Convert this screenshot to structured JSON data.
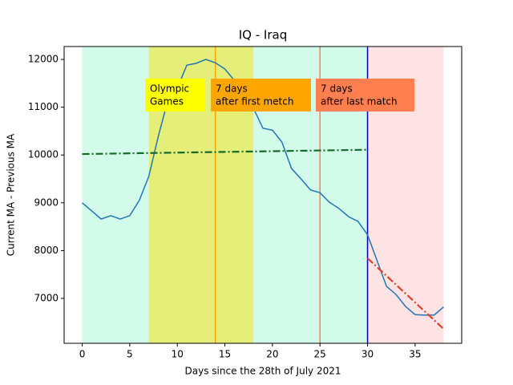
{
  "chart_data": {
    "type": "line",
    "title": "IQ - Iraq",
    "xlabel": "Days since the 28th of July 2021",
    "ylabel": "Current MA - Previous MA",
    "x": [
      0,
      1,
      2,
      3,
      4,
      5,
      6,
      7,
      8,
      9,
      10,
      11,
      12,
      13,
      14,
      15,
      16,
      17,
      18,
      19,
      20,
      21,
      22,
      23,
      24,
      25,
      26,
      27,
      28,
      29,
      30,
      31,
      32,
      33,
      34,
      35,
      36,
      37,
      38
    ],
    "series": [
      {
        "color": "#1f77b4",
        "style": "solid",
        "values": [
          9000,
          8830,
          8660,
          8730,
          8660,
          8730,
          9050,
          9550,
          10390,
          11140,
          11400,
          11880,
          11920,
          12000,
          11930,
          11800,
          11560,
          11230,
          10980,
          10560,
          10520,
          10270,
          9720,
          9500,
          9270,
          9210,
          9010,
          8880,
          8710,
          8610,
          8330,
          7790,
          7250,
          7080,
          6830,
          6660,
          6650,
          6650,
          6820
        ]
      },
      {
        "color": "#146b27",
        "style": "dashdot",
        "x": [
          0,
          30
        ],
        "values": [
          10020,
          10110
        ]
      },
      {
        "color": "#e0402a",
        "style": "dashdot",
        "x": [
          30,
          38
        ],
        "values": [
          7840,
          6360
        ]
      }
    ],
    "spans": [
      {
        "from": 0,
        "to": 7,
        "color": "#d2fbe9"
      },
      {
        "from": 7,
        "to": 18,
        "color": "#e6ee7a"
      },
      {
        "from": 18,
        "to": 30,
        "color": "#d2fbe9"
      },
      {
        "from": 30,
        "to": 38,
        "color": "#fde3e3"
      }
    ],
    "vlines": [
      {
        "x": 14,
        "color": "#ffa500"
      },
      {
        "x": 25,
        "color": "#ff7f50"
      },
      {
        "x": 30,
        "color": "#0000cd"
      }
    ],
    "annotations": [
      {
        "lines": [
          "Olympic",
          "Games"
        ],
        "color": "#ffff00"
      },
      {
        "lines": [
          "7 days",
          "after first metch"
        ],
        "color": "#ffa500"
      },
      {
        "lines": [
          "7 days",
          "after last match"
        ],
        "color": "#ff7f50"
      }
    ],
    "xlim": [
      -1.9,
      39.9
    ],
    "ylim": [
      6060,
      12270
    ],
    "xticks": [
      0,
      5,
      10,
      15,
      20,
      25,
      30,
      35
    ],
    "yticks": [
      7000,
      8000,
      9000,
      10000,
      11000,
      12000
    ]
  }
}
